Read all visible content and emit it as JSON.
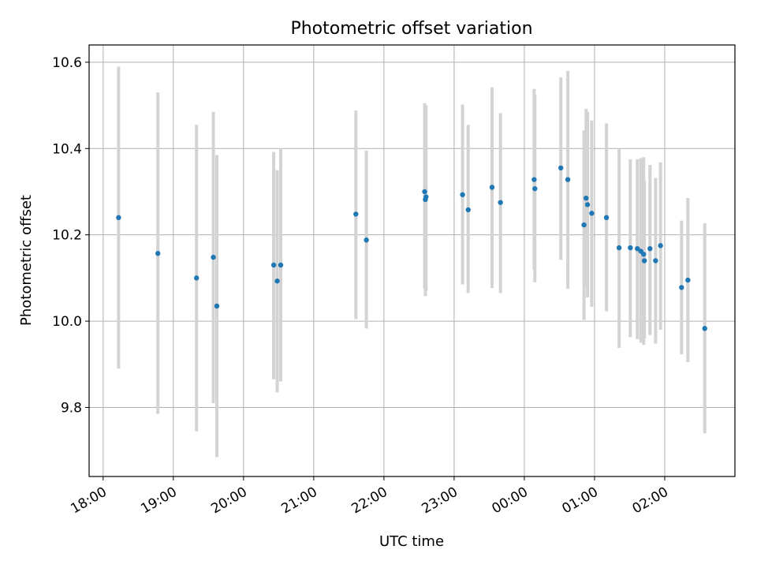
{
  "chart_data": {
    "type": "scatter",
    "title": "Photometric offset variation",
    "xlabel": "UTC time",
    "ylabel": "Photometric offset",
    "x_unit": "hours since 18:00 UTC",
    "xlim": [
      -0.2,
      9.0
    ],
    "ylim": [
      9.64,
      10.64
    ],
    "grid": true,
    "x_tick_labels": [
      "18:00",
      "19:00",
      "20:00",
      "21:00",
      "22:00",
      "23:00",
      "00:00",
      "01:00",
      "02:00"
    ],
    "y_ticks": [
      9.8,
      10.0,
      10.2,
      10.4,
      10.6
    ],
    "y_tick_labels": [
      "9.8",
      "10.0",
      "10.2",
      "10.4",
      "10.6"
    ],
    "point_color": "#1f77b4",
    "errorbar_color": "#d3d3d3",
    "points": [
      {
        "x": 0.22,
        "y": 10.24,
        "lo": 9.89,
        "hi": 10.59
      },
      {
        "x": 0.78,
        "y": 10.157,
        "lo": 9.785,
        "hi": 10.53
      },
      {
        "x": 1.33,
        "y": 10.1,
        "lo": 9.745,
        "hi": 10.455
      },
      {
        "x": 1.57,
        "y": 10.148,
        "lo": 9.81,
        "hi": 10.485
      },
      {
        "x": 1.62,
        "y": 10.035,
        "lo": 9.685,
        "hi": 10.385
      },
      {
        "x": 2.43,
        "y": 10.13,
        "lo": 9.865,
        "hi": 10.392
      },
      {
        "x": 2.48,
        "y": 10.093,
        "lo": 9.835,
        "hi": 10.35
      },
      {
        "x": 2.53,
        "y": 10.13,
        "lo": 9.86,
        "hi": 10.4
      },
      {
        "x": 3.6,
        "y": 10.248,
        "lo": 10.005,
        "hi": 10.488
      },
      {
        "x": 3.75,
        "y": 10.188,
        "lo": 9.983,
        "hi": 10.395
      },
      {
        "x": 4.58,
        "y": 10.3,
        "lo": 10.075,
        "hi": 10.505
      },
      {
        "x": 4.59,
        "y": 10.282,
        "lo": 10.058,
        "hi": 10.498
      },
      {
        "x": 4.6,
        "y": 10.288,
        "lo": 10.07,
        "hi": 10.5
      },
      {
        "x": 5.12,
        "y": 10.293,
        "lo": 10.085,
        "hi": 10.502
      },
      {
        "x": 5.2,
        "y": 10.258,
        "lo": 10.065,
        "hi": 10.455
      },
      {
        "x": 5.54,
        "y": 10.31,
        "lo": 10.077,
        "hi": 10.542
      },
      {
        "x": 5.66,
        "y": 10.275,
        "lo": 10.065,
        "hi": 10.482
      },
      {
        "x": 6.14,
        "y": 10.328,
        "lo": 10.12,
        "hi": 10.538
      },
      {
        "x": 6.15,
        "y": 10.307,
        "lo": 10.09,
        "hi": 10.525
      },
      {
        "x": 6.52,
        "y": 10.355,
        "lo": 10.142,
        "hi": 10.565
      },
      {
        "x": 6.62,
        "y": 10.328,
        "lo": 10.075,
        "hi": 10.58
      },
      {
        "x": 6.85,
        "y": 10.223,
        "lo": 10.003,
        "hi": 10.442
      },
      {
        "x": 6.88,
        "y": 10.285,
        "lo": 10.08,
        "hi": 10.492
      },
      {
        "x": 6.9,
        "y": 10.27,
        "lo": 10.055,
        "hi": 10.485
      },
      {
        "x": 6.96,
        "y": 10.25,
        "lo": 10.033,
        "hi": 10.465
      },
      {
        "x": 7.17,
        "y": 10.24,
        "lo": 10.023,
        "hi": 10.458
      },
      {
        "x": 7.35,
        "y": 10.17,
        "lo": 9.938,
        "hi": 10.4
      },
      {
        "x": 7.51,
        "y": 10.17,
        "lo": 9.963,
        "hi": 10.375
      },
      {
        "x": 7.61,
        "y": 10.168,
        "lo": 9.958,
        "hi": 10.375
      },
      {
        "x": 7.66,
        "y": 10.162,
        "lo": 9.95,
        "hi": 10.378
      },
      {
        "x": 7.7,
        "y": 10.155,
        "lo": 9.945,
        "hi": 10.38
      },
      {
        "x": 7.71,
        "y": 10.14,
        "lo": 9.96,
        "hi": 10.325
      },
      {
        "x": 7.79,
        "y": 10.168,
        "lo": 9.968,
        "hi": 10.362
      },
      {
        "x": 7.87,
        "y": 10.14,
        "lo": 9.948,
        "hi": 10.332
      },
      {
        "x": 7.94,
        "y": 10.175,
        "lo": 9.98,
        "hi": 10.368
      },
      {
        "x": 8.24,
        "y": 10.078,
        "lo": 9.923,
        "hi": 10.233
      },
      {
        "x": 8.33,
        "y": 10.095,
        "lo": 9.905,
        "hi": 10.285
      },
      {
        "x": 8.57,
        "y": 9.983,
        "lo": 9.74,
        "hi": 10.227
      }
    ]
  }
}
